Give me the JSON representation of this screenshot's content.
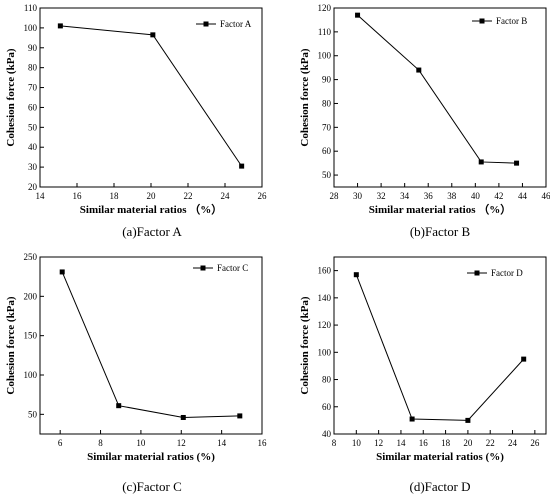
{
  "chart_data": [
    {
      "type": "line",
      "caption": "(a)Factor A",
      "xlabel": "Similar material ratios （%）",
      "ylabel": "Cohesion force (kPa)",
      "xlim": [
        14,
        26
      ],
      "ylim": [
        20,
        110
      ],
      "xticks": [
        "14",
        "16",
        "18",
        "20",
        "22",
        "24",
        "26"
      ],
      "yticks": [
        "20",
        "30",
        "40",
        "50",
        "60",
        "70",
        "80",
        "90",
        "100",
        "110"
      ],
      "legend_position": "top-right",
      "series": [
        {
          "name": "Factor A",
          "x": [
            15.1,
            20.1,
            24.9
          ],
          "values": [
            101,
            96.5,
            30.5
          ]
        }
      ]
    },
    {
      "type": "line",
      "caption": "(b)Factor B",
      "xlabel": "Similar material ratios （%）",
      "ylabel": "Cohesion force (kPa)",
      "xlim": [
        28,
        46
      ],
      "ylim": [
        45,
        120
      ],
      "xticks": [
        "28",
        "30",
        "32",
        "34",
        "36",
        "38",
        "40",
        "42",
        "44",
        "46"
      ],
      "yticks": [
        "50",
        "60",
        "70",
        "80",
        "90",
        "100",
        "110",
        "120"
      ],
      "legend_position": "top-right",
      "series": [
        {
          "name": "Factor B",
          "x": [
            30,
            35.2,
            40.5,
            43.5
          ],
          "values": [
            117,
            94,
            55.5,
            55
          ]
        }
      ]
    },
    {
      "type": "line",
      "caption": "(c)Factor C",
      "xlabel": "Similar material ratios (%)",
      "ylabel": "Cohesion force (kPa)",
      "xlim": [
        5,
        16
      ],
      "ylim": [
        25,
        250
      ],
      "xticks": [
        "6",
        "8",
        "10",
        "12",
        "14",
        "16"
      ],
      "yticks": [
        "50",
        "100",
        "150",
        "200",
        "250"
      ],
      "legend_position": "top-right",
      "series": [
        {
          "name": "Factor C",
          "x": [
            6.1,
            8.9,
            12.1,
            14.9
          ],
          "values": [
            231,
            61,
            46,
            48
          ]
        }
      ]
    },
    {
      "type": "line",
      "caption": "(d)Factor D",
      "xlabel": "Similar material ratios (%)",
      "ylabel": "Cohesion force (kPa)",
      "xlim": [
        8,
        27
      ],
      "ylim": [
        40,
        170
      ],
      "xticks": [
        "8",
        "10",
        "12",
        "14",
        "16",
        "18",
        "20",
        "22",
        "24",
        "26"
      ],
      "yticks": [
        "40",
        "60",
        "80",
        "100",
        "120",
        "140",
        "160"
      ],
      "legend_position": "top-left",
      "series": [
        {
          "name": "Factor D",
          "x": [
            10,
            15,
            20,
            25
          ],
          "values": [
            157,
            51,
            50,
            95
          ]
        }
      ]
    }
  ]
}
